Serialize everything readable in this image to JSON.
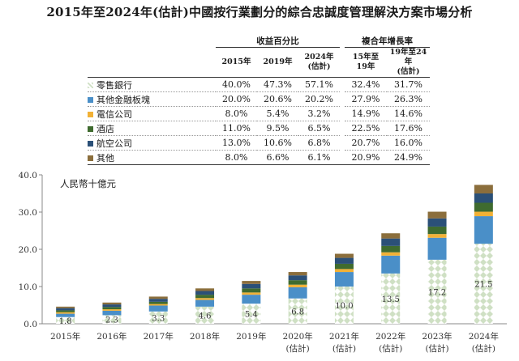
{
  "title": "2015年至2024年(估計)中國按行業劃分的綜合忠誠度管理解決方案市場分析",
  "table": {
    "group_headers": [
      "收益百分比",
      "複合年增長率"
    ],
    "col_headers": [
      [
        "2015年"
      ],
      [
        "2019年"
      ],
      [
        "2024年",
        "(估計)"
      ],
      [
        "15年至",
        "19年"
      ],
      [
        "19年至24年",
        "(估計)"
      ]
    ],
    "rows": [
      {
        "label": "零售銀行",
        "values": [
          "40.0%",
          "47.3%",
          "57.1%",
          "32.4%",
          "31.7%"
        ]
      },
      {
        "label": "其他金融板塊",
        "values": [
          "20.0%",
          "20.6%",
          "20.2%",
          "27.9%",
          "26.3%"
        ]
      },
      {
        "label": "電信公司",
        "values": [
          "8.0%",
          "5.4%",
          "3.2%",
          "14.9%",
          "14.6%"
        ]
      },
      {
        "label": "酒店",
        "values": [
          "11.0%",
          "9.5%",
          "6.5%",
          "22.5%",
          "17.6%"
        ]
      },
      {
        "label": "航空公司",
        "values": [
          "13.0%",
          "10.6%",
          "6.8%",
          "20.7%",
          "16.0%"
        ]
      },
      {
        "label": "其他",
        "values": [
          "8.0%",
          "6.6%",
          "6.1%",
          "20.9%",
          "24.9%"
        ]
      }
    ]
  },
  "colors": {
    "retail": "#cfe0c4",
    "retail_pattern_bg": "#ffffff",
    "other_fin": "#4a8fc8",
    "telecom": "#f2b136",
    "hotel": "#3f6b2f",
    "airline": "#2b5078",
    "others": "#8b6e3c",
    "axis": "#888888",
    "text": "#333333"
  },
  "chart_data": {
    "type": "bar",
    "stacked": true,
    "unit_label": "人民幣十億元",
    "ylim": [
      0,
      40
    ],
    "yticks": [
      "0.0",
      "10.0",
      "20.0",
      "30.0",
      "40.0"
    ],
    "categories": [
      "2015年",
      "2016年",
      "2017年",
      "2018年",
      "2019年",
      "2020年",
      "2021年",
      "2022年",
      "2023年",
      "2024年"
    ],
    "category_sub": [
      "",
      "",
      "",
      "",
      "",
      "(估計)",
      "(估計)",
      "(估計)",
      "(估計)",
      "(估計)"
    ],
    "series": [
      {
        "name": "零售銀行",
        "values": [
          1.8,
          2.3,
          3.3,
          4.6,
          5.4,
          6.8,
          10.0,
          13.5,
          17.2,
          21.5
        ],
        "labeled": true
      },
      {
        "name": "其他金融板塊",
        "values": [
          0.9,
          1.2,
          1.6,
          1.8,
          2.4,
          3.0,
          3.9,
          4.8,
          5.9,
          7.4
        ]
      },
      {
        "name": "電信公司",
        "values": [
          0.4,
          0.4,
          0.4,
          0.5,
          0.6,
          0.7,
          0.8,
          0.9,
          1.0,
          1.2
        ]
      },
      {
        "name": "酒店",
        "values": [
          0.5,
          0.6,
          0.6,
          0.9,
          1.1,
          1.2,
          1.4,
          1.7,
          2.0,
          2.4
        ]
      },
      {
        "name": "航空公司",
        "values": [
          0.6,
          0.7,
          0.8,
          1.0,
          1.2,
          1.3,
          1.6,
          2.0,
          2.2,
          2.5
        ]
      },
      {
        "name": "其他",
        "values": [
          0.4,
          0.5,
          0.6,
          0.7,
          0.8,
          0.9,
          1.1,
          1.4,
          1.8,
          2.3
        ]
      }
    ]
  }
}
